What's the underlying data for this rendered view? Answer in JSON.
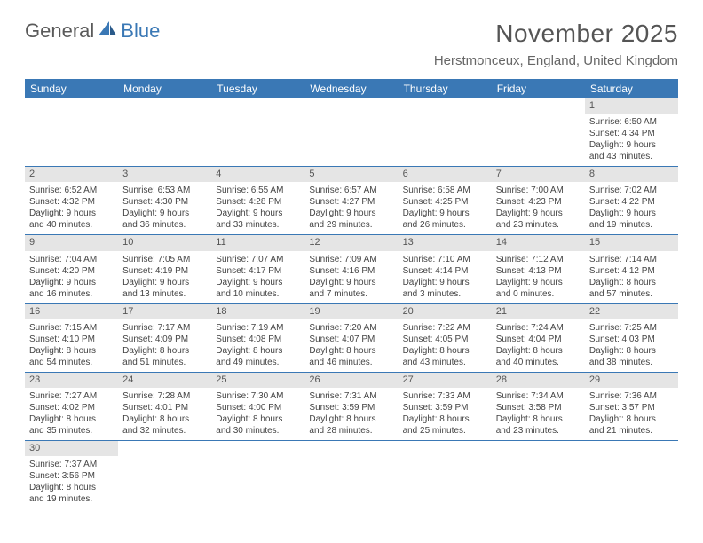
{
  "logo": {
    "part1": "General",
    "part2": "Blue"
  },
  "title": "November 2025",
  "subtitle": "Herstmonceux, England, United Kingdom",
  "colors": {
    "header_bg": "#3a78b5",
    "header_text": "#ffffff",
    "daynum_bg": "#e5e5e5",
    "row_border": "#3a78b5",
    "logo_blue": "#3a78b5",
    "logo_gray": "#5a5a5a"
  },
  "weekdays": [
    "Sunday",
    "Monday",
    "Tuesday",
    "Wednesday",
    "Thursday",
    "Friday",
    "Saturday"
  ],
  "weeks": [
    [
      null,
      null,
      null,
      null,
      null,
      null,
      {
        "n": "1",
        "sr": "Sunrise: 6:50 AM",
        "ss": "Sunset: 4:34 PM",
        "d1": "Daylight: 9 hours",
        "d2": "and 43 minutes."
      }
    ],
    [
      {
        "n": "2",
        "sr": "Sunrise: 6:52 AM",
        "ss": "Sunset: 4:32 PM",
        "d1": "Daylight: 9 hours",
        "d2": "and 40 minutes."
      },
      {
        "n": "3",
        "sr": "Sunrise: 6:53 AM",
        "ss": "Sunset: 4:30 PM",
        "d1": "Daylight: 9 hours",
        "d2": "and 36 minutes."
      },
      {
        "n": "4",
        "sr": "Sunrise: 6:55 AM",
        "ss": "Sunset: 4:28 PM",
        "d1": "Daylight: 9 hours",
        "d2": "and 33 minutes."
      },
      {
        "n": "5",
        "sr": "Sunrise: 6:57 AM",
        "ss": "Sunset: 4:27 PM",
        "d1": "Daylight: 9 hours",
        "d2": "and 29 minutes."
      },
      {
        "n": "6",
        "sr": "Sunrise: 6:58 AM",
        "ss": "Sunset: 4:25 PM",
        "d1": "Daylight: 9 hours",
        "d2": "and 26 minutes."
      },
      {
        "n": "7",
        "sr": "Sunrise: 7:00 AM",
        "ss": "Sunset: 4:23 PM",
        "d1": "Daylight: 9 hours",
        "d2": "and 23 minutes."
      },
      {
        "n": "8",
        "sr": "Sunrise: 7:02 AM",
        "ss": "Sunset: 4:22 PM",
        "d1": "Daylight: 9 hours",
        "d2": "and 19 minutes."
      }
    ],
    [
      {
        "n": "9",
        "sr": "Sunrise: 7:04 AM",
        "ss": "Sunset: 4:20 PM",
        "d1": "Daylight: 9 hours",
        "d2": "and 16 minutes."
      },
      {
        "n": "10",
        "sr": "Sunrise: 7:05 AM",
        "ss": "Sunset: 4:19 PM",
        "d1": "Daylight: 9 hours",
        "d2": "and 13 minutes."
      },
      {
        "n": "11",
        "sr": "Sunrise: 7:07 AM",
        "ss": "Sunset: 4:17 PM",
        "d1": "Daylight: 9 hours",
        "d2": "and 10 minutes."
      },
      {
        "n": "12",
        "sr": "Sunrise: 7:09 AM",
        "ss": "Sunset: 4:16 PM",
        "d1": "Daylight: 9 hours",
        "d2": "and 7 minutes."
      },
      {
        "n": "13",
        "sr": "Sunrise: 7:10 AM",
        "ss": "Sunset: 4:14 PM",
        "d1": "Daylight: 9 hours",
        "d2": "and 3 minutes."
      },
      {
        "n": "14",
        "sr": "Sunrise: 7:12 AM",
        "ss": "Sunset: 4:13 PM",
        "d1": "Daylight: 9 hours",
        "d2": "and 0 minutes."
      },
      {
        "n": "15",
        "sr": "Sunrise: 7:14 AM",
        "ss": "Sunset: 4:12 PM",
        "d1": "Daylight: 8 hours",
        "d2": "and 57 minutes."
      }
    ],
    [
      {
        "n": "16",
        "sr": "Sunrise: 7:15 AM",
        "ss": "Sunset: 4:10 PM",
        "d1": "Daylight: 8 hours",
        "d2": "and 54 minutes."
      },
      {
        "n": "17",
        "sr": "Sunrise: 7:17 AM",
        "ss": "Sunset: 4:09 PM",
        "d1": "Daylight: 8 hours",
        "d2": "and 51 minutes."
      },
      {
        "n": "18",
        "sr": "Sunrise: 7:19 AM",
        "ss": "Sunset: 4:08 PM",
        "d1": "Daylight: 8 hours",
        "d2": "and 49 minutes."
      },
      {
        "n": "19",
        "sr": "Sunrise: 7:20 AM",
        "ss": "Sunset: 4:07 PM",
        "d1": "Daylight: 8 hours",
        "d2": "and 46 minutes."
      },
      {
        "n": "20",
        "sr": "Sunrise: 7:22 AM",
        "ss": "Sunset: 4:05 PM",
        "d1": "Daylight: 8 hours",
        "d2": "and 43 minutes."
      },
      {
        "n": "21",
        "sr": "Sunrise: 7:24 AM",
        "ss": "Sunset: 4:04 PM",
        "d1": "Daylight: 8 hours",
        "d2": "and 40 minutes."
      },
      {
        "n": "22",
        "sr": "Sunrise: 7:25 AM",
        "ss": "Sunset: 4:03 PM",
        "d1": "Daylight: 8 hours",
        "d2": "and 38 minutes."
      }
    ],
    [
      {
        "n": "23",
        "sr": "Sunrise: 7:27 AM",
        "ss": "Sunset: 4:02 PM",
        "d1": "Daylight: 8 hours",
        "d2": "and 35 minutes."
      },
      {
        "n": "24",
        "sr": "Sunrise: 7:28 AM",
        "ss": "Sunset: 4:01 PM",
        "d1": "Daylight: 8 hours",
        "d2": "and 32 minutes."
      },
      {
        "n": "25",
        "sr": "Sunrise: 7:30 AM",
        "ss": "Sunset: 4:00 PM",
        "d1": "Daylight: 8 hours",
        "d2": "and 30 minutes."
      },
      {
        "n": "26",
        "sr": "Sunrise: 7:31 AM",
        "ss": "Sunset: 3:59 PM",
        "d1": "Daylight: 8 hours",
        "d2": "and 28 minutes."
      },
      {
        "n": "27",
        "sr": "Sunrise: 7:33 AM",
        "ss": "Sunset: 3:59 PM",
        "d1": "Daylight: 8 hours",
        "d2": "and 25 minutes."
      },
      {
        "n": "28",
        "sr": "Sunrise: 7:34 AM",
        "ss": "Sunset: 3:58 PM",
        "d1": "Daylight: 8 hours",
        "d2": "and 23 minutes."
      },
      {
        "n": "29",
        "sr": "Sunrise: 7:36 AM",
        "ss": "Sunset: 3:57 PM",
        "d1": "Daylight: 8 hours",
        "d2": "and 21 minutes."
      }
    ],
    [
      {
        "n": "30",
        "sr": "Sunrise: 7:37 AM",
        "ss": "Sunset: 3:56 PM",
        "d1": "Daylight: 8 hours",
        "d2": "and 19 minutes."
      },
      null,
      null,
      null,
      null,
      null,
      null
    ]
  ]
}
